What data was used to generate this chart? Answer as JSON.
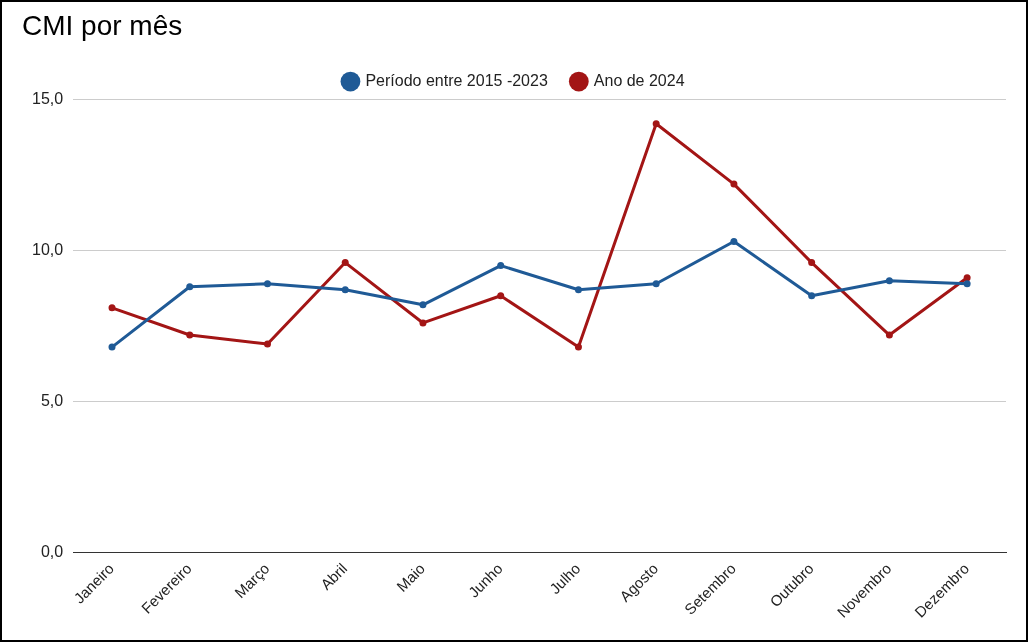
{
  "chart_data": {
    "type": "line",
    "title": "CMI por mês",
    "categories": [
      "Janeiro",
      "Fevereiro",
      "Março",
      "Abril",
      "Maio",
      "Junho",
      "Julho",
      "Agosto",
      "Setembro",
      "Outubro",
      "Novembro",
      "Dezembro"
    ],
    "series": [
      {
        "name": "Período entre 2015 -2023",
        "color": "#1f5a96",
        "values": [
          6.8,
          8.8,
          8.9,
          8.7,
          8.2,
          9.5,
          8.7,
          8.9,
          10.3,
          8.5,
          9.0,
          8.9
        ]
      },
      {
        "name": "Ano de 2024",
        "color": "#a31515",
        "values": [
          8.1,
          7.2,
          6.9,
          9.6,
          7.6,
          8.5,
          6.8,
          14.2,
          12.2,
          9.6,
          7.2,
          9.1
        ]
      }
    ],
    "ylim": [
      0,
      15
    ],
    "yticks": [
      {
        "value": 0,
        "label": "0,0"
      },
      {
        "value": 5,
        "label": "5,0"
      },
      {
        "value": 10,
        "label": "10,0"
      },
      {
        "value": 15,
        "label": "15,0"
      }
    ],
    "grid": "y",
    "legend": "top",
    "marker": "circle",
    "line_style": "solid"
  }
}
